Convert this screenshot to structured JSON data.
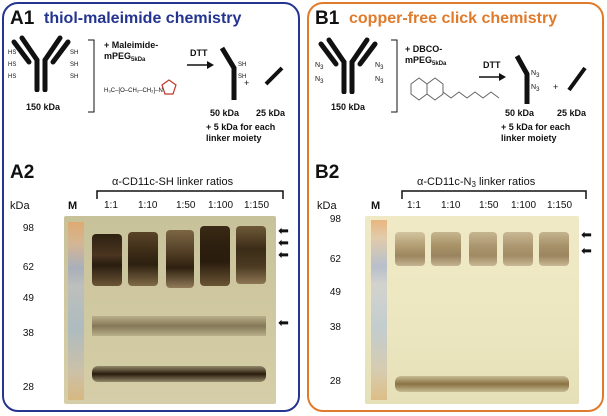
{
  "panel_a": {
    "id_top": "A1",
    "title": "thiol-maleimide chemistry",
    "reagent_line1": "+ Maleimide-",
    "reagent_line2": "mPEG",
    "reagent_sub": "5kDa",
    "dtt": "DTT",
    "antibody_kda": "150 kDa",
    "heavy_kda": "50 kDa",
    "light_kda": "25 kDa",
    "note_line1": "+ 5 kDa for each",
    "note_line2": "linker moiety",
    "sh": "SH",
    "hs": "HS",
    "formula": "H₃C–[O–CH₂–CH₂]–N",
    "id_bottom": "A2",
    "lane_title": "α-CD11c-SH linker ratios",
    "kda_label": "kDa",
    "marker_label": "M",
    "ratios": [
      "1:1",
      "1:10",
      "1:50",
      "1:100",
      "1:150"
    ],
    "mw": [
      "98",
      "62",
      "49",
      "38",
      "28"
    ]
  },
  "panel_b": {
    "id_top": "B1",
    "title": "copper-free click chemistry",
    "reagent_line1": "+ DBCO-",
    "reagent_line2": "mPEG",
    "reagent_sub": "5kDa",
    "dtt": "DTT",
    "antibody_kda": "150 kDa",
    "heavy_kda": "50 kDa",
    "light_kda": "25 kDa",
    "note_line1": "+ 5 kDa for each",
    "note_line2": "linker moiety",
    "n3": "N",
    "n3_sub": "3",
    "id_bottom": "B2",
    "lane_title_pre": "α-CD11c-N",
    "lane_title_sub": "3",
    "lane_title_post": " linker ratios",
    "kda_label": "kDa",
    "marker_label": "M",
    "ratios": [
      "1:1",
      "1:10",
      "1:50",
      "1:100",
      "1:150"
    ],
    "mw": [
      "98",
      "62",
      "49",
      "38",
      "28"
    ]
  },
  "colors": {
    "panel_a_border": "#25358f",
    "panel_b_border": "#e07b2c",
    "gel_a": "#c9c39a",
    "gel_b": "#ece8c6"
  }
}
